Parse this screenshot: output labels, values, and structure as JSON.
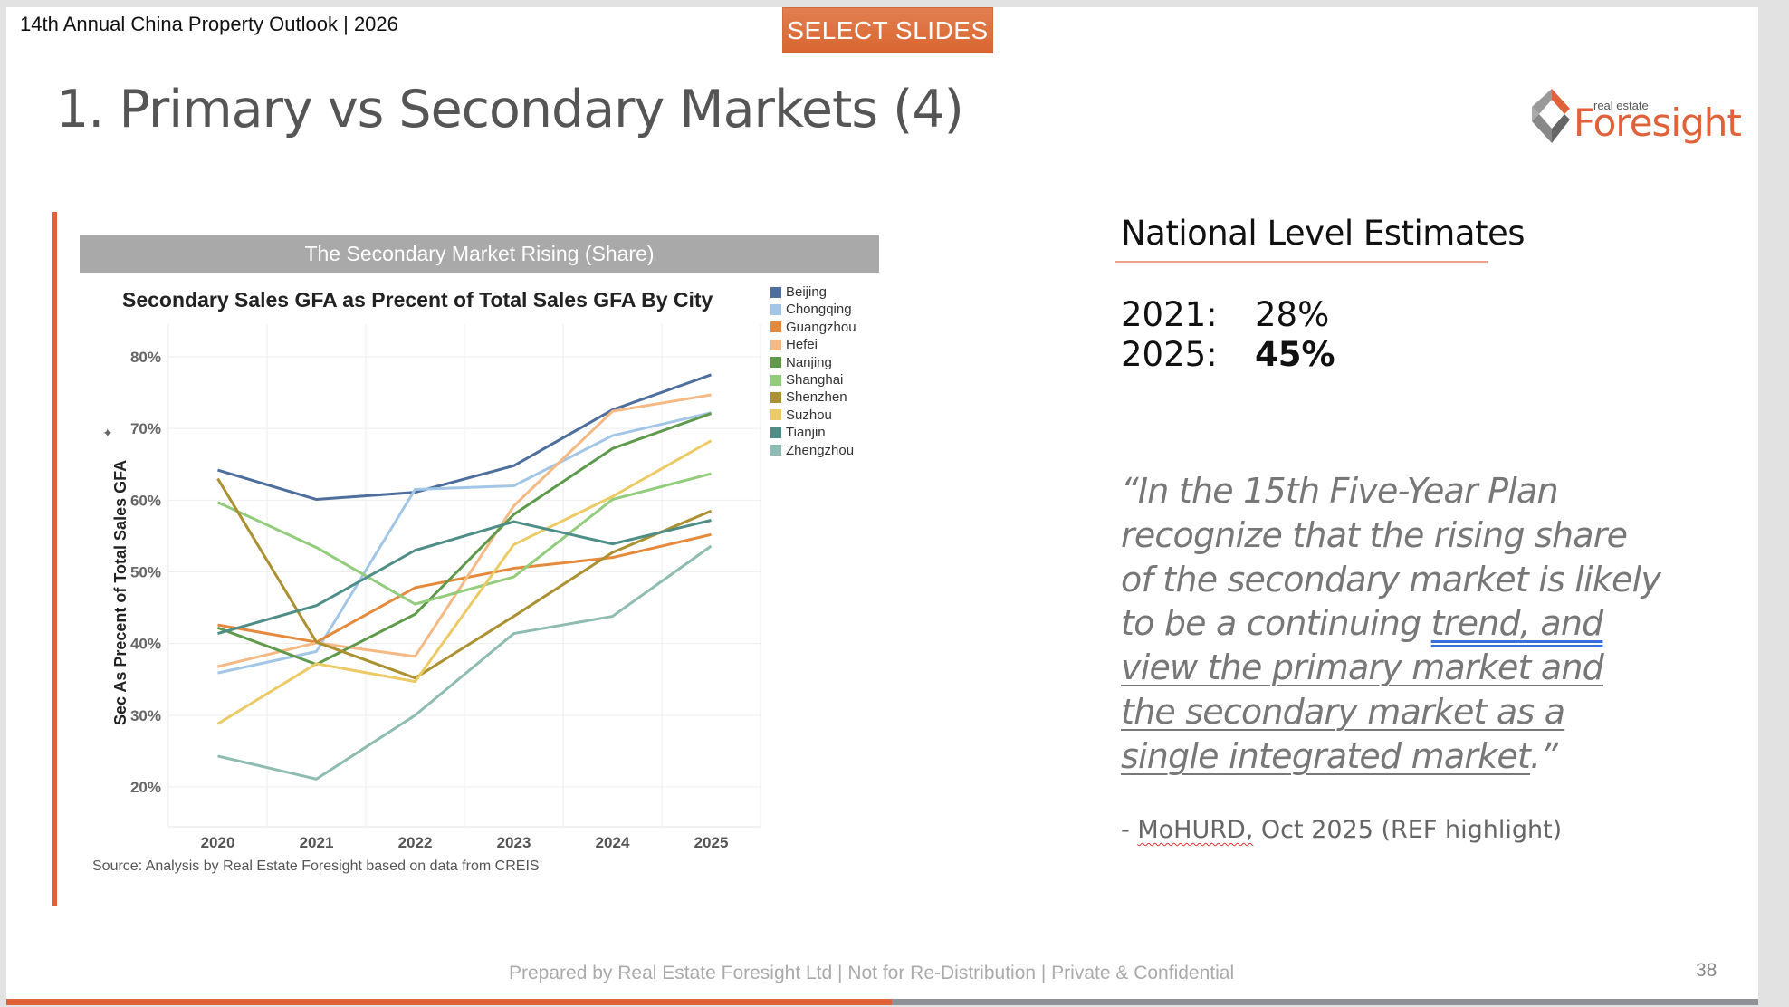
{
  "header": {
    "deck_label": "14th Annual China Property Outlook | 2026",
    "select_slides_label": "SELECT SLIDES"
  },
  "slide": {
    "title": "1. Primary vs Secondary Markets (4)",
    "logo": {
      "sub": "real estate",
      "main": "Foresight"
    },
    "page_number": "38",
    "footer": "Prepared by Real Estate Foresight Ltd | Not for Re-Distribution | Private & Confidential"
  },
  "colors": {
    "accent": "#e0623a",
    "banner": "#a9a9a9"
  },
  "chart_banner": "The Secondary Market Rising (Share)",
  "icons": {
    "pin": "pin-icon"
  },
  "chart_data": {
    "type": "line",
    "title": "Secondary Sales GFA as Precent of Total Sales GFA By City",
    "xlabel": "",
    "ylabel": "Sec As Precent of Total Sales GFA",
    "x": [
      "2020",
      "2021",
      "2022",
      "2023",
      "2024",
      "2025"
    ],
    "ylim": [
      15,
      84
    ],
    "yticks": [
      20,
      30,
      40,
      50,
      60,
      70,
      80
    ],
    "ytick_labels": [
      "20%",
      "30%",
      "40%",
      "50%",
      "60%",
      "70%",
      "80%"
    ],
    "grid": true,
    "legend": "right",
    "source": "Source: Analysis by Real Estate Foresight based on data from CREIS",
    "series": [
      {
        "name": "Beijing",
        "color": "#4e6e9e",
        "values": [
          64.2,
          60.1,
          61.1,
          64.8,
          72.6,
          77.5
        ]
      },
      {
        "name": "Chongqing",
        "color": "#a3c6e6",
        "values": [
          35.9,
          38.9,
          61.5,
          62.0,
          69.0,
          72.2
        ]
      },
      {
        "name": "Guangzhou",
        "color": "#e58a3c",
        "values": [
          42.6,
          40.2,
          47.8,
          50.5,
          52.0,
          55.2
        ]
      },
      {
        "name": "Hefei",
        "color": "#f5b985",
        "values": [
          36.8,
          40.1,
          38.2,
          59.2,
          72.4,
          74.7
        ]
      },
      {
        "name": "Nanjing",
        "color": "#5f9a4c",
        "values": [
          42.2,
          37.1,
          44.1,
          58.0,
          67.2,
          72.1
        ]
      },
      {
        "name": "Shanghai",
        "color": "#93cc7c",
        "values": [
          59.7,
          53.4,
          45.5,
          49.3,
          60.1,
          63.7
        ]
      },
      {
        "name": "Shenzhen",
        "color": "#ab9132",
        "values": [
          63.0,
          40.2,
          35.2,
          43.8,
          52.7,
          58.5
        ]
      },
      {
        "name": "Suzhou",
        "color": "#ecca66",
        "values": [
          28.8,
          37.2,
          34.7,
          53.8,
          60.5,
          68.3
        ]
      },
      {
        "name": "Tianjin",
        "color": "#4f8e87",
        "values": [
          41.4,
          45.3,
          53.0,
          57.0,
          53.9,
          57.2
        ]
      },
      {
        "name": "Zhengzhou",
        "color": "#8fbcb2",
        "values": [
          24.3,
          21.1,
          30.0,
          41.4,
          43.8,
          53.6
        ]
      }
    ]
  },
  "national_estimates": {
    "title": "National Level Estimates",
    "rows": [
      {
        "year": "2021:",
        "value": "28%"
      },
      {
        "year": "2025:",
        "value": "45%"
      }
    ]
  },
  "quote": {
    "plain": "“In the 15th Five-Year Plan recognize that the rising share of the secondary market is likely to be a continuing ",
    "blue_underlined": "trend, and",
    "space": " ",
    "underlined": "view the primary market and the secondary market as a single integrated market",
    "tail": ".”",
    "attribution_prefix": "- ",
    "attribution_source": "MoHURD,",
    "attribution_rest": " Oct 2025 (REF highlight)"
  }
}
